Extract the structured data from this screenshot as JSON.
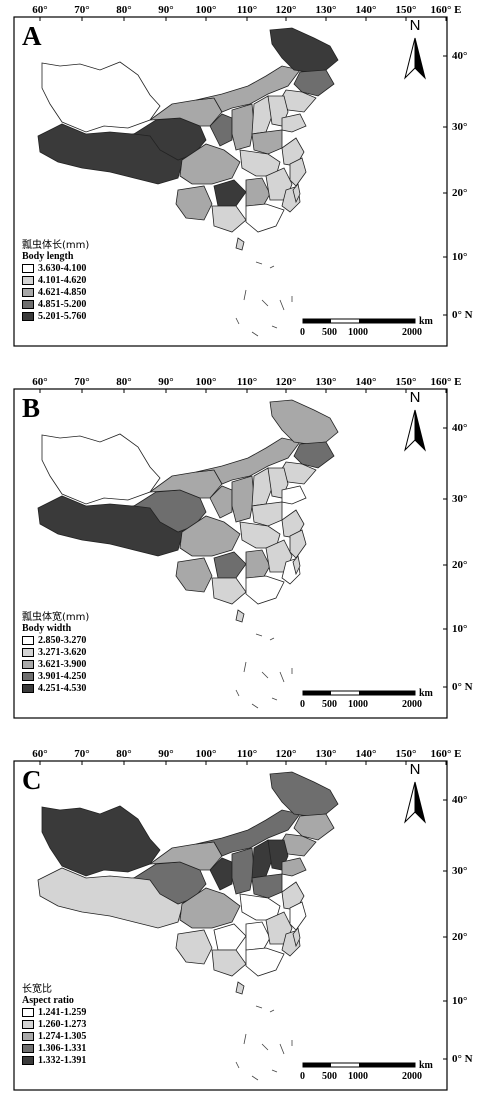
{
  "longitude_ticks": [
    "60°",
    "70°",
    "80°",
    "90°",
    "100°",
    "110°",
    "120°",
    "130°",
    "140°",
    "150°",
    "160° E"
  ],
  "latitude_ticks": [
    "40°",
    "30°",
    "20°",
    "10°",
    "0° N"
  ],
  "north_label": "N",
  "scale_bar": {
    "labels": [
      "0",
      "500",
      "1000",
      "2000"
    ],
    "unit": "km"
  },
  "panels": [
    {
      "letter": "A",
      "legend_title_cn": "瓢虫体长(mm)",
      "legend_title_en": "Body length",
      "classes": [
        {
          "label": "3.630-4.100",
          "color": "#ffffff"
        },
        {
          "label": "4.101-4.620",
          "color": "#d4d4d4"
        },
        {
          "label": "4.621-4.850",
          "color": "#a8a8a8"
        },
        {
          "label": "4.851-5.200",
          "color": "#6e6e6e"
        },
        {
          "label": "5.201-5.760",
          "color": "#3a3a3a"
        }
      ]
    },
    {
      "letter": "B",
      "legend_title_cn": "瓢虫体宽(mm)",
      "legend_title_en": "Body width",
      "classes": [
        {
          "label": "2.850-3.270",
          "color": "#ffffff"
        },
        {
          "label": "3.271-3.620",
          "color": "#d4d4d4"
        },
        {
          "label": "3.621-3.900",
          "color": "#a8a8a8"
        },
        {
          "label": "3.901-4.250",
          "color": "#6e6e6e"
        },
        {
          "label": "4.251-4.530",
          "color": "#3a3a3a"
        }
      ]
    },
    {
      "letter": "C",
      "legend_title_cn": "长宽比",
      "legend_title_en": "Aspect ratio",
      "classes": [
        {
          "label": "1.241-1.259",
          "color": "#ffffff"
        },
        {
          "label": "1.260-1.273",
          "color": "#d4d4d4"
        },
        {
          "label": "1.274-1.305",
          "color": "#a8a8a8"
        },
        {
          "label": "1.306-1.331",
          "color": "#6e6e6e"
        },
        {
          "label": "1.332-1.391",
          "color": "#3a3a3a"
        }
      ]
    }
  ]
}
